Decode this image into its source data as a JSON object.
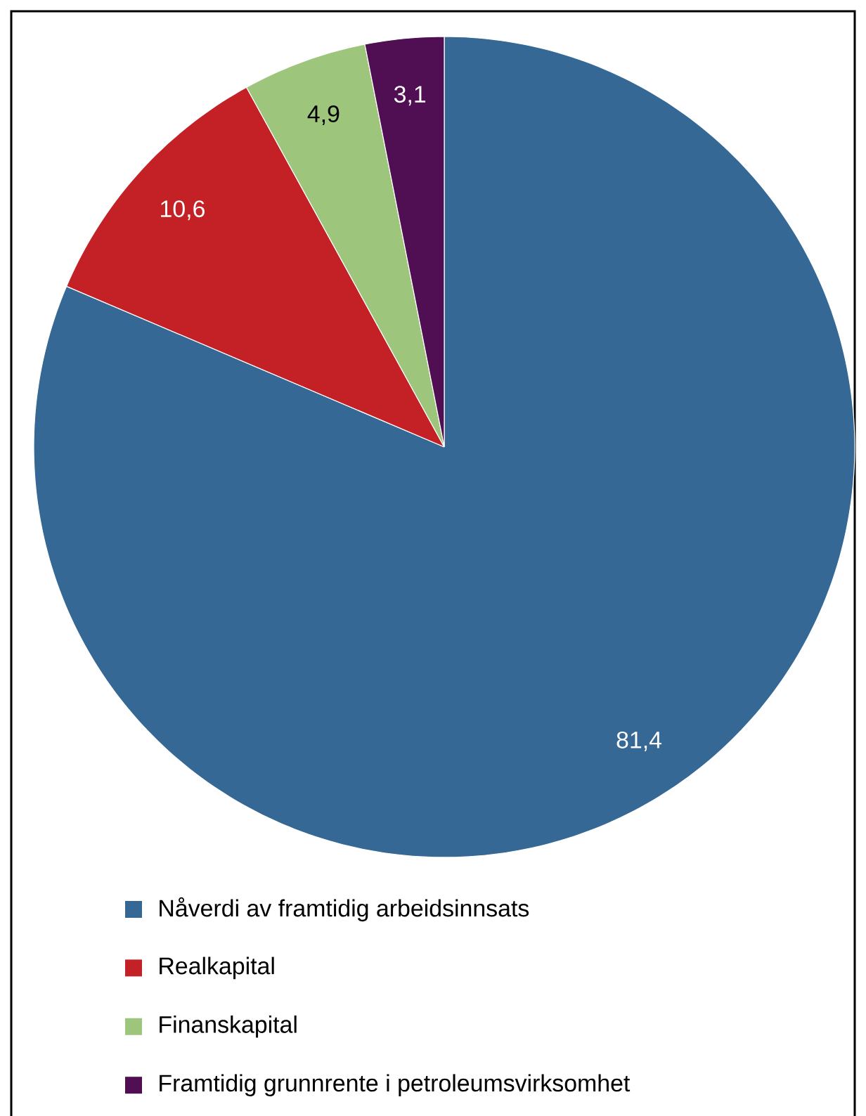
{
  "chart_data": {
    "type": "pie",
    "categories": [
      "Nåverdi av framtidig arbeidsinnsats",
      "Realkapital",
      "Finanskapital",
      "Framtidig grunnrente i petroleumsvirksomhet"
    ],
    "values": [
      81.4,
      10.6,
      4.9,
      3.1
    ],
    "value_labels": [
      "81,4",
      "10,6",
      "4,9",
      "3,1"
    ],
    "colors": [
      "#356895",
      "#c42127",
      "#9ec57c",
      "#4f0f52"
    ],
    "legend": "bottom"
  }
}
